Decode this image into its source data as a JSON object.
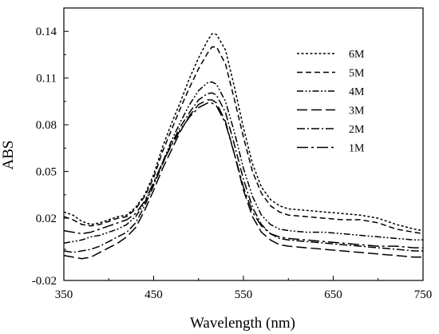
{
  "chart_data": {
    "type": "line",
    "title": "",
    "xlabel": "Wavelength (nm)",
    "ylabel": "ABS",
    "xlim": [
      350,
      750
    ],
    "ylim": [
      -0.02,
      0.155
    ],
    "xticks": [
      350,
      450,
      550,
      650,
      750
    ],
    "yticks": [
      -0.02,
      0.02,
      0.05,
      0.08,
      0.11,
      0.14
    ],
    "xtick_labels": [
      "350",
      "450",
      "550",
      "650",
      "750"
    ],
    "ytick_labels": [
      "-0.02",
      "0.02",
      "0.05",
      "0.08",
      "0.11",
      "0.14"
    ],
    "grid": false,
    "legend_position": "top-right",
    "x": [
      350,
      360,
      370,
      380,
      390,
      400,
      410,
      420,
      430,
      440,
      450,
      460,
      470,
      480,
      490,
      500,
      510,
      515,
      520,
      530,
      540,
      550,
      560,
      570,
      580,
      590,
      600,
      620,
      640,
      660,
      680,
      700,
      720,
      740,
      750
    ],
    "series": [
      {
        "name": "6M",
        "dash": "3,2.5",
        "values": [
          0.024,
          0.022,
          0.018,
          0.016,
          0.017,
          0.019,
          0.021,
          0.022,
          0.027,
          0.035,
          0.048,
          0.066,
          0.081,
          0.095,
          0.11,
          0.123,
          0.134,
          0.1385,
          0.138,
          0.128,
          0.104,
          0.078,
          0.055,
          0.04,
          0.032,
          0.028,
          0.026,
          0.025,
          0.024,
          0.023,
          0.022,
          0.02,
          0.016,
          0.013,
          0.012
        ]
      },
      {
        "name": "5M",
        "dash": "7,4",
        "values": [
          0.021,
          0.019,
          0.016,
          0.015,
          0.016,
          0.018,
          0.02,
          0.021,
          0.026,
          0.034,
          0.046,
          0.063,
          0.077,
          0.091,
          0.104,
          0.116,
          0.126,
          0.13,
          0.13,
          0.119,
          0.096,
          0.072,
          0.05,
          0.036,
          0.028,
          0.024,
          0.022,
          0.021,
          0.02,
          0.019,
          0.019,
          0.017,
          0.013,
          0.011,
          0.01
        ]
      },
      {
        "name": "4M",
        "dash": "8,2.5,2,2.5,2,2.5",
        "values": [
          0.004,
          0.005,
          0.006,
          0.008,
          0.009,
          0.011,
          0.013,
          0.016,
          0.021,
          0.03,
          0.042,
          0.056,
          0.07,
          0.082,
          0.093,
          0.102,
          0.107,
          0.1075,
          0.106,
          0.095,
          0.075,
          0.052,
          0.034,
          0.022,
          0.016,
          0.013,
          0.012,
          0.011,
          0.011,
          0.01,
          0.009,
          0.008,
          0.007,
          0.006,
          0.006
        ]
      },
      {
        "name": "3M",
        "dash": "13,5",
        "values": [
          -0.004,
          -0.005,
          -0.006,
          -0.005,
          -0.002,
          0.001,
          0.004,
          0.008,
          0.014,
          0.025,
          0.038,
          0.052,
          0.064,
          0.076,
          0.086,
          0.093,
          0.096,
          0.096,
          0.094,
          0.082,
          0.061,
          0.038,
          0.021,
          0.011,
          0.006,
          0.003,
          0.002,
          0.001,
          0.0,
          -0.001,
          -0.002,
          -0.003,
          -0.004,
          -0.005,
          -0.005
        ]
      },
      {
        "name": "2M",
        "dash": "10,3,2,3",
        "values": [
          -0.001,
          -0.002,
          -0.001,
          0.0,
          0.002,
          0.005,
          0.008,
          0.011,
          0.017,
          0.028,
          0.041,
          0.055,
          0.068,
          0.079,
          0.088,
          0.096,
          0.1,
          0.1005,
          0.099,
          0.088,
          0.067,
          0.045,
          0.027,
          0.016,
          0.01,
          0.007,
          0.006,
          0.005,
          0.004,
          0.003,
          0.002,
          0.001,
          0.0,
          -0.001,
          -0.001
        ]
      },
      {
        "name": "1M",
        "dash": "14,4,3,4",
        "values": [
          0.012,
          0.011,
          0.01,
          0.011,
          0.013,
          0.015,
          0.017,
          0.019,
          0.023,
          0.031,
          0.043,
          0.056,
          0.067,
          0.077,
          0.085,
          0.091,
          0.094,
          0.094,
          0.092,
          0.081,
          0.061,
          0.04,
          0.024,
          0.015,
          0.01,
          0.008,
          0.007,
          0.006,
          0.005,
          0.004,
          0.003,
          0.002,
          0.002,
          0.001,
          0.001
        ]
      }
    ]
  }
}
